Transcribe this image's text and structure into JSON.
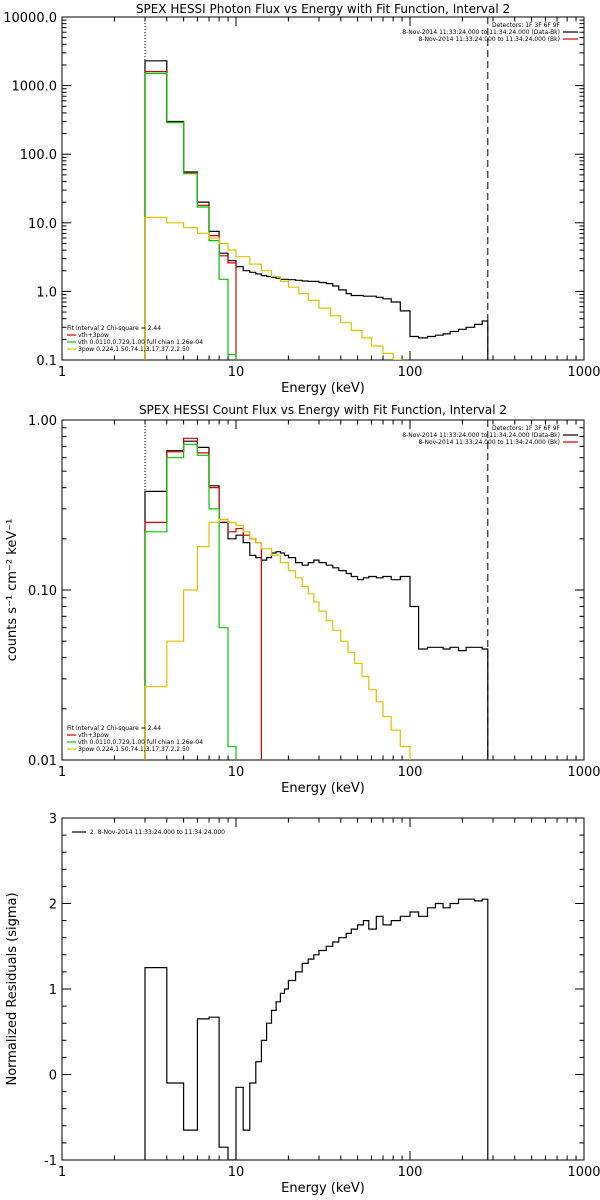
{
  "chart_data": [
    {
      "type": "line",
      "title": "SPEX HESSI Photon Flux vs Energy with Fit Function, Interval 2",
      "xlabel": "Energy (keV)",
      "ylabel": "",
      "x_scale": "log",
      "y_scale": "log",
      "xlim": [
        1,
        1000
      ],
      "ylim": [
        0.1,
        10000
      ],
      "x_ticks": [
        1,
        10,
        100,
        1000
      ],
      "x_tick_labels": [
        "1",
        "10",
        "100",
        "1000"
      ],
      "y_ticks": [
        0.1,
        1,
        10,
        100,
        1000,
        10000
      ],
      "y_tick_labels": [
        "0.1",
        "1.0",
        "10.0",
        "100.0",
        "1000.0",
        "10000.0"
      ],
      "vlines": [
        {
          "x": 3,
          "style": "dotted"
        },
        {
          "x": 280,
          "style": "dashed"
        }
      ],
      "legend_top": [
        "Detectors: 1F 3F 6F 9F",
        "8-Nov-2014 11:33:24.000 to 11:34:24.000 (Data-Bk)",
        "8-Nov-2014 11:33:24.000 to 11:34:24.000 (Bk)"
      ],
      "legend_top_colors": [
        "",
        "#000000",
        "#d00000"
      ],
      "legend_top_placement": "top-right",
      "legend_bottom": [
        "Fit Interval 2   Chi-square = 2.44",
        "vth+3pow",
        "vth 0.0110,0.729,1.00  full chian 1.26e-04",
        "3pow 0.224,1.50,74.1,3.17,37.2,2.50"
      ],
      "legend_bottom_colors": [
        "",
        "#d00000",
        "#00c800",
        "#e0c000"
      ],
      "legend_bottom_placement": "bottom-left",
      "series": [
        {
          "color": "#000000",
          "edges": [
            3,
            4,
            5,
            6,
            7,
            8,
            9,
            10,
            11,
            12,
            13,
            14,
            15,
            16,
            17,
            18,
            19,
            20,
            22,
            24,
            26,
            28,
            30,
            33,
            36,
            39,
            43,
            46,
            50,
            54,
            58,
            64,
            70,
            78,
            88,
            100,
            112,
            126,
            140,
            155,
            170,
            190,
            210,
            235,
            260,
            280
          ],
          "values": [
            2300,
            300,
            55,
            20,
            7.5,
            3.6,
            2.8,
            2.3,
            2.0,
            1.9,
            1.8,
            1.7,
            1.65,
            1.6,
            1.55,
            1.5,
            1.5,
            1.48,
            1.45,
            1.42,
            1.4,
            1.4,
            1.35,
            1.3,
            1.2,
            1.05,
            0.93,
            0.87,
            0.87,
            0.85,
            0.85,
            0.82,
            0.78,
            0.7,
            0.52,
            0.22,
            0.21,
            0.22,
            0.23,
            0.24,
            0.26,
            0.28,
            0.3,
            0.33,
            0.37
          ]
        },
        {
          "color": "#d00000",
          "edges": [
            3,
            4,
            5,
            6,
            7,
            8,
            9,
            10
          ],
          "values": [
            1600,
            290,
            54,
            18,
            6.5,
            3.3,
            2.6
          ]
        },
        {
          "color": "#00c800",
          "edges": [
            3,
            4,
            5,
            6,
            7,
            8,
            9,
            10
          ],
          "values": [
            1500,
            290,
            52,
            17,
            5.5,
            1.5,
            0.12
          ]
        },
        {
          "color": "#e0c000",
          "edges": [
            3,
            4,
            5,
            6,
            7,
            8,
            9,
            10,
            12,
            14,
            16,
            18,
            20,
            23,
            26,
            30,
            35,
            40,
            46,
            53,
            60,
            70,
            80,
            90,
            100
          ],
          "values": [
            12,
            10,
            8.5,
            7,
            6,
            5,
            4,
            3.2,
            2.5,
            2.0,
            1.65,
            1.4,
            1.15,
            0.93,
            0.74,
            0.57,
            0.44,
            0.35,
            0.27,
            0.21,
            0.16,
            0.125,
            0.1,
            0.08
          ]
        }
      ]
    },
    {
      "type": "line",
      "title": "SPEX HESSI Count Flux vs Energy with Fit Function, Interval 2",
      "xlabel": "Energy (keV)",
      "ylabel": "counts s⁻¹ cm⁻² keV⁻¹",
      "x_scale": "log",
      "y_scale": "log",
      "xlim": [
        1,
        1000
      ],
      "ylim": [
        0.01,
        1.0
      ],
      "x_ticks": [
        1,
        10,
        100,
        1000
      ],
      "x_tick_labels": [
        "1",
        "10",
        "100",
        "1000"
      ],
      "y_ticks": [
        0.01,
        0.1,
        1
      ],
      "y_tick_labels": [
        "0.01",
        "0.10",
        "1.00"
      ],
      "vlines": [
        {
          "x": 3,
          "style": "dotted"
        },
        {
          "x": 280,
          "style": "dashed"
        }
      ],
      "legend_top": [
        "Detectors: 1F 3F 6F 9F",
        "8-Nov-2014 11:33:24.000 to 11:34:24.000 (Data-Bk)",
        "8-Nov-2014 11:33:24.000 to 11:34:24.000 (Bk)"
      ],
      "legend_top_colors": [
        "",
        "#000000",
        "#d00000"
      ],
      "legend_top_placement": "top-right",
      "legend_bottom": [
        "Fit Interval 2   Chi-square = 2.44",
        "vth+3pow",
        "vth 0.0110,0.729,1.00  full chian 1.26e-04",
        "3pow 0.224,1.50,74.1,3.17,37.2,2.50"
      ],
      "legend_bottom_colors": [
        "",
        "#d00000",
        "#00c800",
        "#e0c000"
      ],
      "legend_bottom_placement": "bottom-left",
      "series": [
        {
          "color": "#000000",
          "edges": [
            3,
            4,
            5,
            6,
            7,
            8,
            9,
            10,
            11,
            12,
            13,
            14,
            15,
            16,
            17,
            18,
            19,
            20,
            22,
            24,
            26,
            28,
            30,
            33,
            36,
            39,
            43,
            46,
            50,
            54,
            58,
            64,
            70,
            78,
            88,
            100,
            112,
            126,
            140,
            155,
            170,
            190,
            210,
            235,
            260,
            280
          ],
          "values": [
            0.38,
            0.66,
            0.75,
            0.69,
            0.41,
            0.25,
            0.2,
            0.21,
            0.19,
            0.16,
            0.155,
            0.15,
            0.155,
            0.165,
            0.168,
            0.165,
            0.16,
            0.155,
            0.145,
            0.14,
            0.145,
            0.15,
            0.145,
            0.14,
            0.135,
            0.13,
            0.125,
            0.12,
            0.115,
            0.118,
            0.12,
            0.118,
            0.12,
            0.115,
            0.12,
            0.08,
            0.045,
            0.046,
            0.046,
            0.045,
            0.046,
            0.044,
            0.046,
            0.046,
            0.045
          ]
        },
        {
          "color": "#d00000",
          "edges": [
            3,
            4,
            5,
            6,
            7,
            8,
            9,
            10,
            11,
            12,
            13,
            14
          ],
          "values": [
            0.25,
            0.65,
            0.78,
            0.64,
            0.4,
            0.26,
            0.22,
            0.23,
            0.21,
            0.2,
            0.19
          ]
        },
        {
          "color": "#00c800",
          "edges": [
            3,
            4,
            5,
            6,
            7,
            8,
            9,
            10
          ],
          "values": [
            0.22,
            0.6,
            0.72,
            0.62,
            0.3,
            0.06,
            0.012
          ]
        },
        {
          "color": "#e0c000",
          "edges": [
            3,
            4,
            5,
            6,
            7,
            8,
            9,
            10,
            11,
            12,
            13,
            14,
            16,
            18,
            20,
            22,
            24,
            26,
            28,
            30,
            33,
            36,
            40,
            44,
            48,
            53,
            58,
            64,
            70,
            78,
            88,
            100,
            110
          ],
          "values": [
            0.027,
            0.05,
            0.1,
            0.18,
            0.25,
            0.26,
            0.25,
            0.24,
            0.22,
            0.2,
            0.19,
            0.175,
            0.16,
            0.145,
            0.13,
            0.118,
            0.105,
            0.095,
            0.085,
            0.075,
            0.066,
            0.058,
            0.05,
            0.043,
            0.037,
            0.031,
            0.026,
            0.022,
            0.018,
            0.015,
            0.012,
            0.0095
          ]
        }
      ]
    },
    {
      "type": "line",
      "title": "",
      "xlabel": "Energy (keV)",
      "ylabel": "Normalized Residuals (sigma)",
      "x_scale": "log",
      "y_scale": "linear",
      "xlim": [
        1,
        1000
      ],
      "ylim": [
        -1,
        3
      ],
      "x_ticks": [
        1,
        10,
        100,
        1000
      ],
      "x_tick_labels": [
        "1",
        "10",
        "100",
        "1000"
      ],
      "y_ticks": [
        -1,
        0,
        1,
        2,
        3
      ],
      "y_tick_labels": [
        "-1",
        "0",
        "1",
        "2",
        "3"
      ],
      "legend_top": [
        "2.  8-Nov-2014 11:33:24.000 to 11:34:24.000"
      ],
      "legend_top_colors": [
        "#000000"
      ],
      "legend_top_placement": "top-left",
      "series": [
        {
          "color": "#000000",
          "edges": [
            3,
            4,
            5,
            6,
            7,
            8,
            9,
            10,
            11,
            12,
            13,
            14,
            15,
            16,
            17,
            18,
            19,
            20,
            22,
            24,
            26,
            28,
            30,
            33,
            36,
            39,
            43,
            46,
            50,
            54,
            58,
            64,
            70,
            78,
            88,
            100,
            112,
            126,
            140,
            155,
            170,
            190,
            210,
            235,
            260,
            280
          ],
          "values": [
            1.25,
            -0.1,
            -0.65,
            0.65,
            0.67,
            -0.85,
            -1.0,
            -0.15,
            -0.65,
            -0.1,
            0.15,
            0.4,
            0.6,
            0.75,
            0.85,
            0.95,
            1.0,
            1.1,
            1.2,
            1.3,
            1.35,
            1.4,
            1.45,
            1.5,
            1.55,
            1.6,
            1.65,
            1.7,
            1.75,
            1.8,
            1.7,
            1.85,
            1.75,
            1.8,
            1.85,
            1.9,
            1.85,
            1.95,
            2.0,
            1.95,
            2.0,
            2.05,
            2.05,
            2.03,
            2.05
          ]
        }
      ]
    }
  ]
}
